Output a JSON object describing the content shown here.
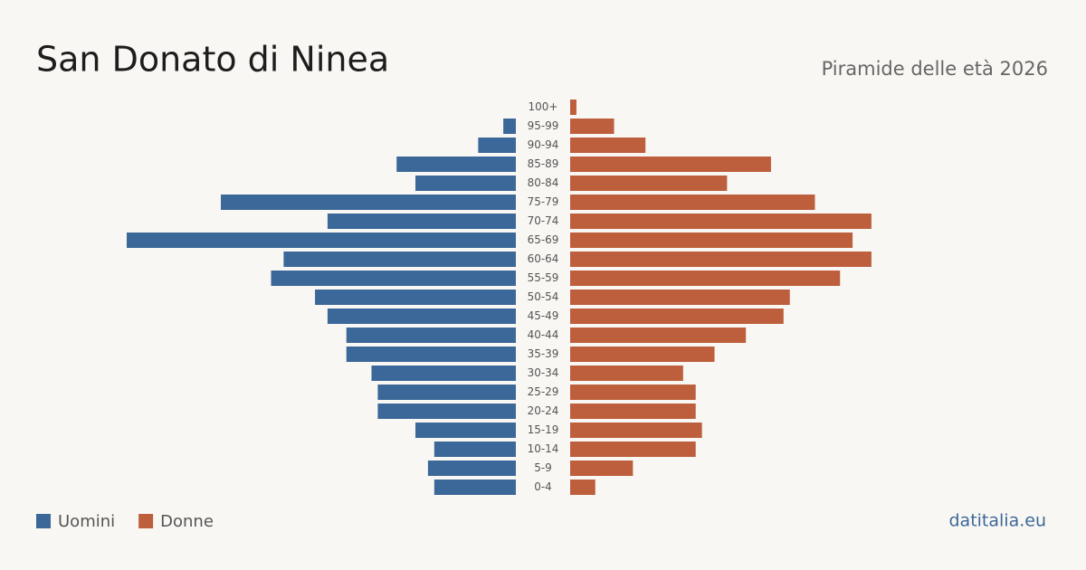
{
  "chart_data": {
    "type": "pyramid",
    "title": "San Donato di Ninea",
    "subtitle": "Piramide delle età 2026",
    "source": "datitalia.eu",
    "categories": [
      "100+",
      "95-99",
      "90-94",
      "85-89",
      "80-84",
      "75-79",
      "70-74",
      "65-69",
      "60-64",
      "55-59",
      "50-54",
      "45-49",
      "40-44",
      "35-39",
      "30-34",
      "25-29",
      "20-24",
      "15-19",
      "10-14",
      "5-9",
      "0-4"
    ],
    "series": [
      {
        "name": "Uomini",
        "color": "#3b6899",
        "values": [
          0,
          2,
          6,
          19,
          16,
          47,
          30,
          62,
          37,
          39,
          32,
          30,
          27,
          27,
          23,
          22,
          22,
          16,
          13,
          14,
          13
        ]
      },
      {
        "name": "Donne",
        "color": "#bd5f3c",
        "values": [
          1,
          7,
          12,
          32,
          25,
          39,
          48,
          45,
          48,
          43,
          35,
          34,
          28,
          23,
          18,
          20,
          20,
          21,
          20,
          10,
          4
        ]
      }
    ]
  }
}
